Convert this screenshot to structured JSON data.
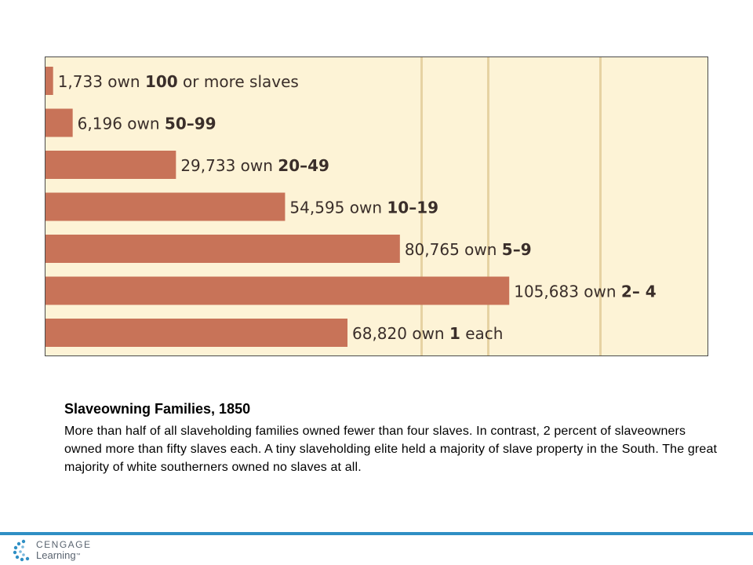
{
  "chart_data": {
    "type": "bar",
    "orientation": "horizontal",
    "bar_color": "#c87358",
    "background_color": "#fdf3d6",
    "gridline_color": "#e6d2a2",
    "grid": true,
    "bars": [
      {
        "count": "1,733",
        "word": "own",
        "range": "100",
        "suffix": "or more slaves",
        "value": 1733
      },
      {
        "count": "6,196",
        "word": "own",
        "range": "50–99",
        "suffix": "",
        "value": 6196
      },
      {
        "count": "29,733",
        "word": "own",
        "range": "20–49",
        "suffix": "",
        "value": 29733
      },
      {
        "count": "54,595",
        "word": "own",
        "range": "10–19",
        "suffix": "",
        "value": 54595
      },
      {
        "count": "80,765",
        "word": "own",
        "range": "5–9",
        "suffix": "",
        "value": 80765
      },
      {
        "count": "105,683",
        "word": "own",
        "range": "2– 4",
        "suffix": "",
        "value": 105683
      },
      {
        "count": "68,820",
        "word": "own",
        "range": "1",
        "suffix": "each",
        "value": 68820
      }
    ],
    "xlim": [
      0,
      106000
    ]
  },
  "caption": {
    "title": "Slaveowning Families, 1850",
    "text": "More than half of all slaveholding families owned fewer than four slaves. In contrast, 2 percent of slaveowners owned more than fifty slaves each. A tiny slaveholding elite held a majority of slave property in the South. The great majority of white southerners owned no slaves at all."
  },
  "footer": {
    "brand_line1": "CENGAGE",
    "brand_line2": "Learning",
    "trademark": "™",
    "accent_color": "#2f8fc4"
  }
}
